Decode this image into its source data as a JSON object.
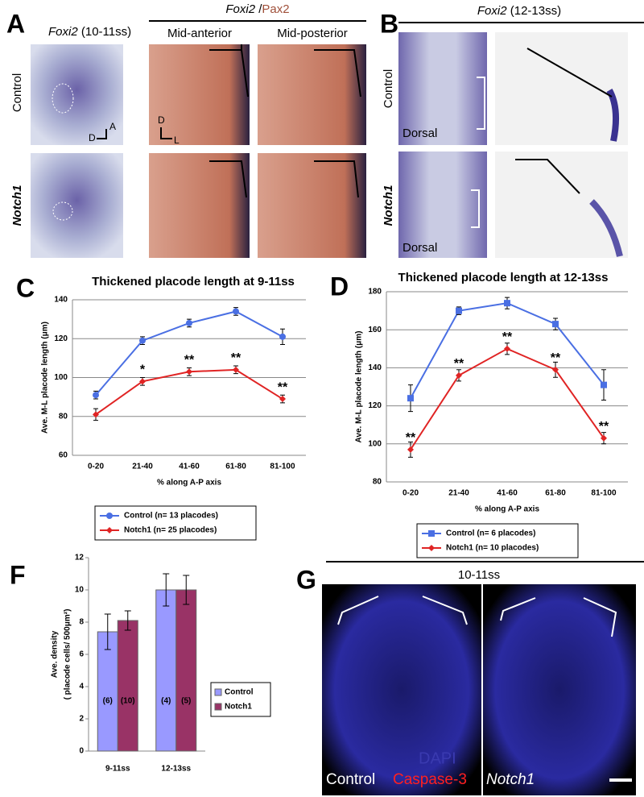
{
  "panels": {
    "A": {
      "letter": "A",
      "title_gene": "Foxi2",
      "title_stage": "(10-11ss)",
      "header_gene": "Foxi2",
      "header_sep": "/",
      "header_marker": "Pax2",
      "columns": [
        "Mid-anterior",
        "Mid-posterior"
      ],
      "rows": [
        "Control",
        "Notch1"
      ],
      "axis_labels": [
        "A",
        "D",
        "D",
        "L"
      ]
    },
    "B": {
      "letter": "B",
      "title_gene": "Foxi2",
      "title_stage": "(12-13ss)",
      "rows": [
        "Control",
        "Notch1"
      ],
      "views": [
        "Dorsal",
        "Dorsal"
      ]
    },
    "G": {
      "letter": "G",
      "title": "10-11ss",
      "labels": [
        "DAPI",
        "Control",
        "Caspase-3",
        "Notch1"
      ]
    }
  },
  "chart_data": [
    {
      "type": "line",
      "panel": "C",
      "title": "Thickened placode length at 9-11ss",
      "y_label": "Ave. M-L placode length (μm)",
      "x_label": "% along A-P axis",
      "categories": [
        "0-20",
        "21-40",
        "41-60",
        "61-80",
        "81-100"
      ],
      "series": [
        {
          "name": "Control (n= 13 placodes)",
          "color": "#4a6fe3",
          "marker": "circle",
          "values": [
            91,
            119,
            128,
            134,
            121
          ],
          "errors": [
            2,
            2,
            2,
            2,
            4
          ]
        },
        {
          "name": "Notch1 (n= 25 placodes)",
          "color": "#e02424",
          "marker": "diamond",
          "values": [
            81,
            98,
            103,
            104,
            89
          ],
          "errors": [
            3,
            2,
            2,
            2,
            2
          ],
          "significance": [
            null,
            "*",
            "**",
            "**",
            "**"
          ]
        }
      ],
      "ylim": [
        60,
        140
      ],
      "yticks": [
        60,
        80,
        100,
        120,
        140
      ],
      "grid": true
    },
    {
      "type": "line",
      "panel": "D",
      "title": "Thickened placode length at 12-13ss",
      "y_label": "Ave. M-L placode length (μm)",
      "x_label": "% along A-P axis",
      "categories": [
        "0-20",
        "21-40",
        "41-60",
        "61-80",
        "81-100"
      ],
      "series": [
        {
          "name": "Control (n= 6 placodes)",
          "color": "#4a6fe3",
          "marker": "square",
          "values": [
            124,
            170,
            174,
            163,
            131
          ],
          "errors": [
            7,
            2,
            3,
            3,
            8
          ]
        },
        {
          "name": "Notch1 (n= 10 placodes)",
          "color": "#e02424",
          "marker": "diamond",
          "values": [
            97,
            136,
            150,
            139,
            103
          ],
          "errors": [
            4,
            3,
            3,
            4,
            3
          ],
          "significance": [
            "**",
            "**",
            "**",
            "**",
            "**"
          ]
        }
      ],
      "ylim": [
        80,
        180
      ],
      "yticks": [
        80,
        100,
        120,
        140,
        160,
        180
      ],
      "grid": true
    },
    {
      "type": "bar",
      "panel": "F",
      "y_label": "Ave. density",
      "y_label2": "( placode cells/ 500μm²)",
      "categories": [
        "9-11ss",
        "12-13ss"
      ],
      "series": [
        {
          "name": "Control",
          "color": "#9999ff",
          "values": [
            7.4,
            10.0
          ],
          "errors": [
            1.1,
            1.0
          ],
          "n_labels": [
            "(6)",
            "(4)"
          ]
        },
        {
          "name": "Notch1",
          "color": "#993366",
          "values": [
            8.1,
            10.0
          ],
          "errors": [
            0.6,
            0.9
          ],
          "n_labels": [
            "(10)",
            "(5)"
          ]
        }
      ],
      "ylim": [
        0,
        12
      ],
      "yticks": [
        0,
        2,
        4,
        6,
        8,
        10,
        12
      ],
      "grid": false
    }
  ]
}
